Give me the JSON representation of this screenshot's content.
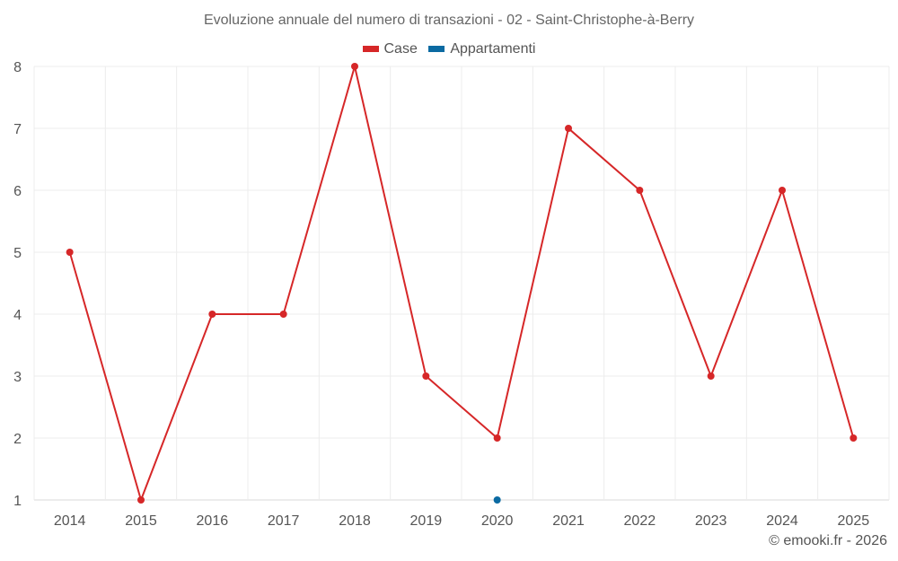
{
  "title": "Evoluzione annuale del numero di transazioni - 02 - Saint-Christophe-à-Berry",
  "legend": [
    {
      "label": "Case",
      "color": "#d62728"
    },
    {
      "label": "Appartamenti",
      "color": "#0b6aa2"
    }
  ],
  "credit": "© emooki.fr - 2026",
  "chart_data": {
    "type": "line",
    "title": "Evoluzione annuale del numero di transazioni - 02 - Saint-Christophe-à-Berry",
    "xlabel": "",
    "ylabel": "",
    "categories": [
      "2014",
      "2015",
      "2016",
      "2017",
      "2018",
      "2019",
      "2020",
      "2021",
      "2022",
      "2023",
      "2024",
      "2025"
    ],
    "series": [
      {
        "name": "Case",
        "color": "#d62728",
        "values": [
          5,
          1,
          4,
          4,
          8,
          3,
          2,
          7,
          6,
          3,
          6,
          2
        ]
      },
      {
        "name": "Appartamenti",
        "color": "#0b6aa2",
        "values": [
          null,
          null,
          null,
          null,
          null,
          null,
          1,
          null,
          null,
          null,
          null,
          null
        ]
      }
    ],
    "yticks": [
      1,
      2,
      3,
      4,
      5,
      6,
      7,
      8
    ],
    "ylim": [
      1,
      8
    ],
    "grid": true,
    "legend_position": "top"
  }
}
